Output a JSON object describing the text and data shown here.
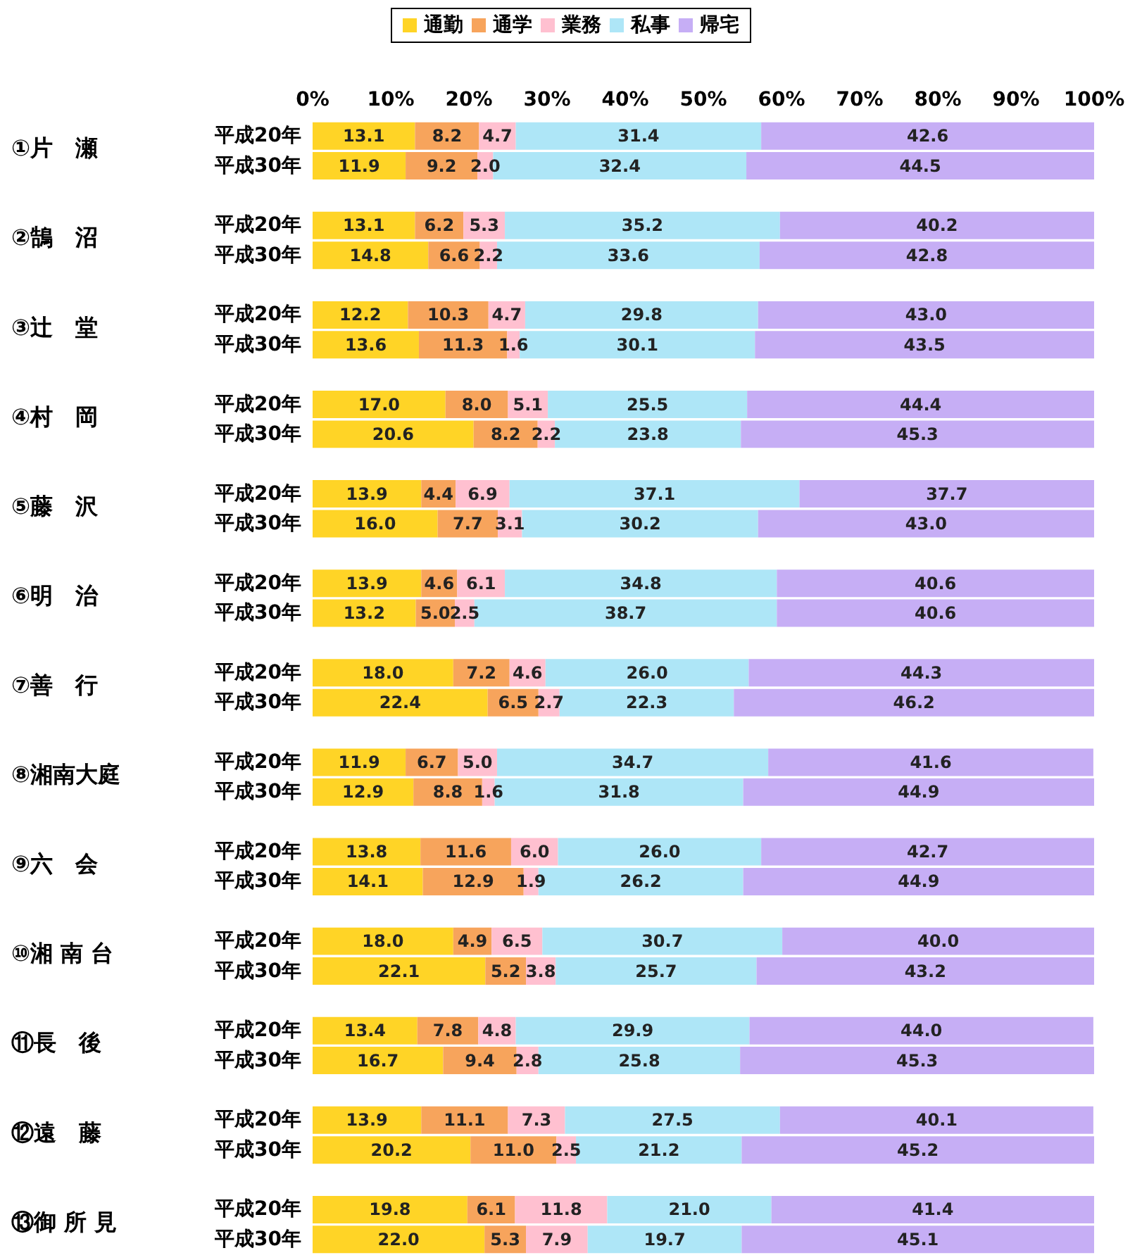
{
  "chart_data": {
    "type": "bar",
    "orientation": "horizontal",
    "stacked": true,
    "legend": "top",
    "grid": false,
    "categories": [
      "平成20年",
      "平成30年",
      "平成20年",
      "平成30年",
      "平成20年",
      "平成30年",
      "平成20年",
      "平成30年",
      "平成20年",
      "平成30年",
      "平成20年",
      "平成30年",
      "平成20年",
      "平成30年",
      "平成20年",
      "平成30年",
      "平成20年",
      "平成30年",
      "平成20年",
      "平成30年",
      "平成20年",
      "平成30年",
      "平成20年",
      "平成30年",
      "平成20年",
      "平成30年"
    ],
    "annotations": [
      "①片　瀬",
      "②鵠　沼",
      "③辻　堂",
      "④村　岡",
      "⑤藤　沢",
      "⑥明　治",
      "⑦善　行",
      "⑧湘南大庭",
      "⑨六　会",
      "⑩湘 南 台",
      "⑪長　後",
      "⑫遠　藤",
      "⑬御 所 見"
    ],
    "xlim": [
      0,
      100
    ],
    "xticks": [
      {
        "value": 0,
        "label": "0%"
      },
      {
        "value": 10,
        "label": "10%"
      },
      {
        "value": 20,
        "label": "20%"
      },
      {
        "value": 30,
        "label": "30%"
      },
      {
        "value": 40,
        "label": "40%"
      },
      {
        "value": 50,
        "label": "50%"
      },
      {
        "value": 60,
        "label": "60%"
      },
      {
        "value": 70,
        "label": "70%"
      },
      {
        "value": 80,
        "label": "80%"
      },
      {
        "value": 90,
        "label": "90%"
      },
      {
        "value": 100,
        "label": "100%"
      }
    ],
    "series": [
      {
        "name": "通勤",
        "color": "#ffd426",
        "values": [
          13.1,
          11.9,
          13.1,
          14.8,
          12.2,
          13.6,
          17.0,
          20.6,
          13.9,
          16.0,
          13.9,
          13.2,
          18.0,
          22.4,
          11.9,
          12.9,
          13.8,
          14.1,
          18.0,
          22.1,
          13.4,
          16.7,
          13.9,
          20.2,
          19.8,
          22.0
        ],
        "value_labels": [
          "13.1",
          "11.9",
          "13.1",
          "14.8",
          "12.2",
          "13.6",
          "17.0",
          "20.6",
          "13.9",
          "16.0",
          "13.9",
          "13.2",
          "18.0",
          "22.4",
          "11.9",
          "12.9",
          "13.8",
          "14.1",
          "18.0",
          "22.1",
          "13.4",
          "16.7",
          "13.9",
          "20.2",
          "19.8",
          "22.0"
        ]
      },
      {
        "name": "通学",
        "color": "#f7a45c",
        "values": [
          8.2,
          9.2,
          6.2,
          6.6,
          10.3,
          11.3,
          8.0,
          8.2,
          4.4,
          7.7,
          4.6,
          5.0,
          7.2,
          6.5,
          6.7,
          8.8,
          11.6,
          12.9,
          4.9,
          5.2,
          7.8,
          9.4,
          11.1,
          11.0,
          6.1,
          5.3
        ],
        "value_labels": [
          "8.2",
          "9.2",
          "6.2",
          "6.6",
          "10.3",
          "11.3",
          "8.0",
          "8.2",
          "4.4",
          "7.7",
          "4.6",
          "5.0",
          "7.2",
          "6.5",
          "6.7",
          "8.8",
          "11.6",
          "12.9",
          "4.9",
          "5.2",
          "7.8",
          "9.4",
          "11.1",
          "11.0",
          "6.1",
          "5.3"
        ]
      },
      {
        "name": "業務",
        "color": "#ffc0d0",
        "values": [
          4.7,
          2.0,
          5.3,
          2.2,
          4.7,
          1.6,
          5.1,
          2.2,
          6.9,
          3.1,
          6.1,
          2.5,
          4.6,
          2.7,
          5.0,
          1.6,
          6.0,
          1.9,
          6.5,
          3.8,
          4.8,
          2.8,
          7.3,
          2.5,
          11.8,
          7.9
        ],
        "value_labels": [
          "4.7",
          "2.0",
          "5.3",
          "2.2",
          "4.7",
          "1.6",
          "5.1",
          "2.2",
          "6.9",
          "3.1",
          "6.1",
          "2.5",
          "4.6",
          "2.7",
          "5.0",
          "1.6",
          "6.0",
          "1.9",
          "6.5",
          "3.8",
          "4.8",
          "2.8",
          "7.3",
          "2.5",
          "11.8",
          "7.9"
        ]
      },
      {
        "name": "私事",
        "color": "#aee6f7",
        "values": [
          31.4,
          32.4,
          35.2,
          33.6,
          29.8,
          30.1,
          25.5,
          23.8,
          37.1,
          30.2,
          34.8,
          38.7,
          26.0,
          22.3,
          34.7,
          31.8,
          26.0,
          26.2,
          30.7,
          25.7,
          29.9,
          25.8,
          27.5,
          21.2,
          21.0,
          19.7
        ],
        "value_labels": [
          "31.4",
          "32.4",
          "35.2",
          "33.6",
          "29.8",
          "30.1",
          "25.5",
          "23.8",
          "37.1",
          "30.2",
          "34.8",
          "38.7",
          "26.0",
          "22.3",
          "34.7",
          "31.8",
          "26.0",
          "26.2",
          "30.7",
          "25.7",
          "29.9",
          "25.8",
          "27.5",
          "21.2",
          "21.0",
          "19.7"
        ]
      },
      {
        "name": "帰宅",
        "color": "#c6aef5",
        "values": [
          42.6,
          44.5,
          40.2,
          42.8,
          43.0,
          43.5,
          44.4,
          45.3,
          37.7,
          43.0,
          40.6,
          40.6,
          44.3,
          46.2,
          41.6,
          44.9,
          42.7,
          44.9,
          40.0,
          43.2,
          44.0,
          45.3,
          40.1,
          45.2,
          41.4,
          45.1
        ],
        "value_labels": [
          "42.6",
          "44.5",
          "40.2",
          "42.8",
          "43.0",
          "43.5",
          "44.4",
          "45.3",
          "37.7",
          "43.0",
          "40.6",
          "40.6",
          "44.3",
          "46.2",
          "41.6",
          "44.9",
          "42.7",
          "44.9",
          "40.0",
          "43.2",
          "44.0",
          "45.3",
          "40.1",
          "45.2",
          "41.4",
          "45.1"
        ]
      }
    ]
  }
}
